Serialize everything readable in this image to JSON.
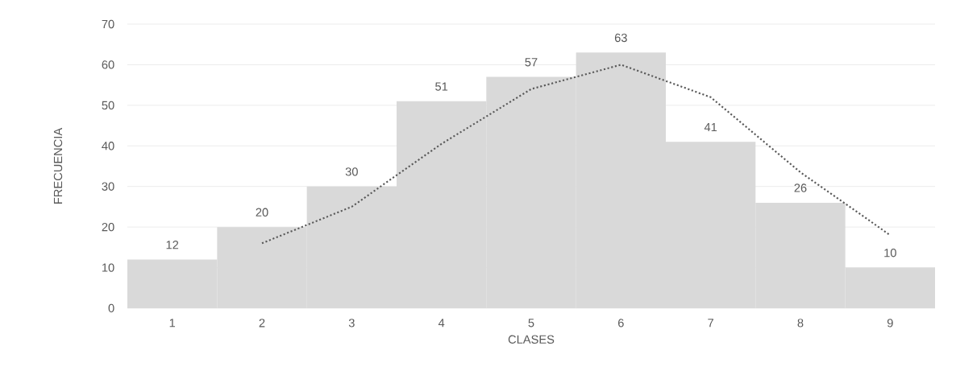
{
  "chart_data": {
    "type": "bar",
    "xlabel": "CLASES",
    "ylabel": "FRECUENCIA",
    "categories": [
      "1",
      "2",
      "3",
      "4",
      "5",
      "6",
      "7",
      "8",
      "9"
    ],
    "series": [
      {
        "color": "#d9d9d9",
        "values": [
          12,
          20,
          30,
          51,
          57,
          63,
          41,
          26,
          10
        ],
        "value_labels": [
          "12",
          "20",
          "30",
          "51",
          "57",
          "63",
          "41",
          "26",
          "10"
        ]
      },
      {
        "type": "line",
        "color": "#595959",
        "line_style": "dotted",
        "values": [
          null,
          16,
          25,
          40.5,
          54,
          60,
          52,
          33.5,
          18
        ]
      }
    ],
    "ylim": [
      0,
      70
    ],
    "yticks": [
      0,
      10,
      20,
      30,
      40,
      50,
      60,
      70
    ],
    "grid": "y"
  }
}
